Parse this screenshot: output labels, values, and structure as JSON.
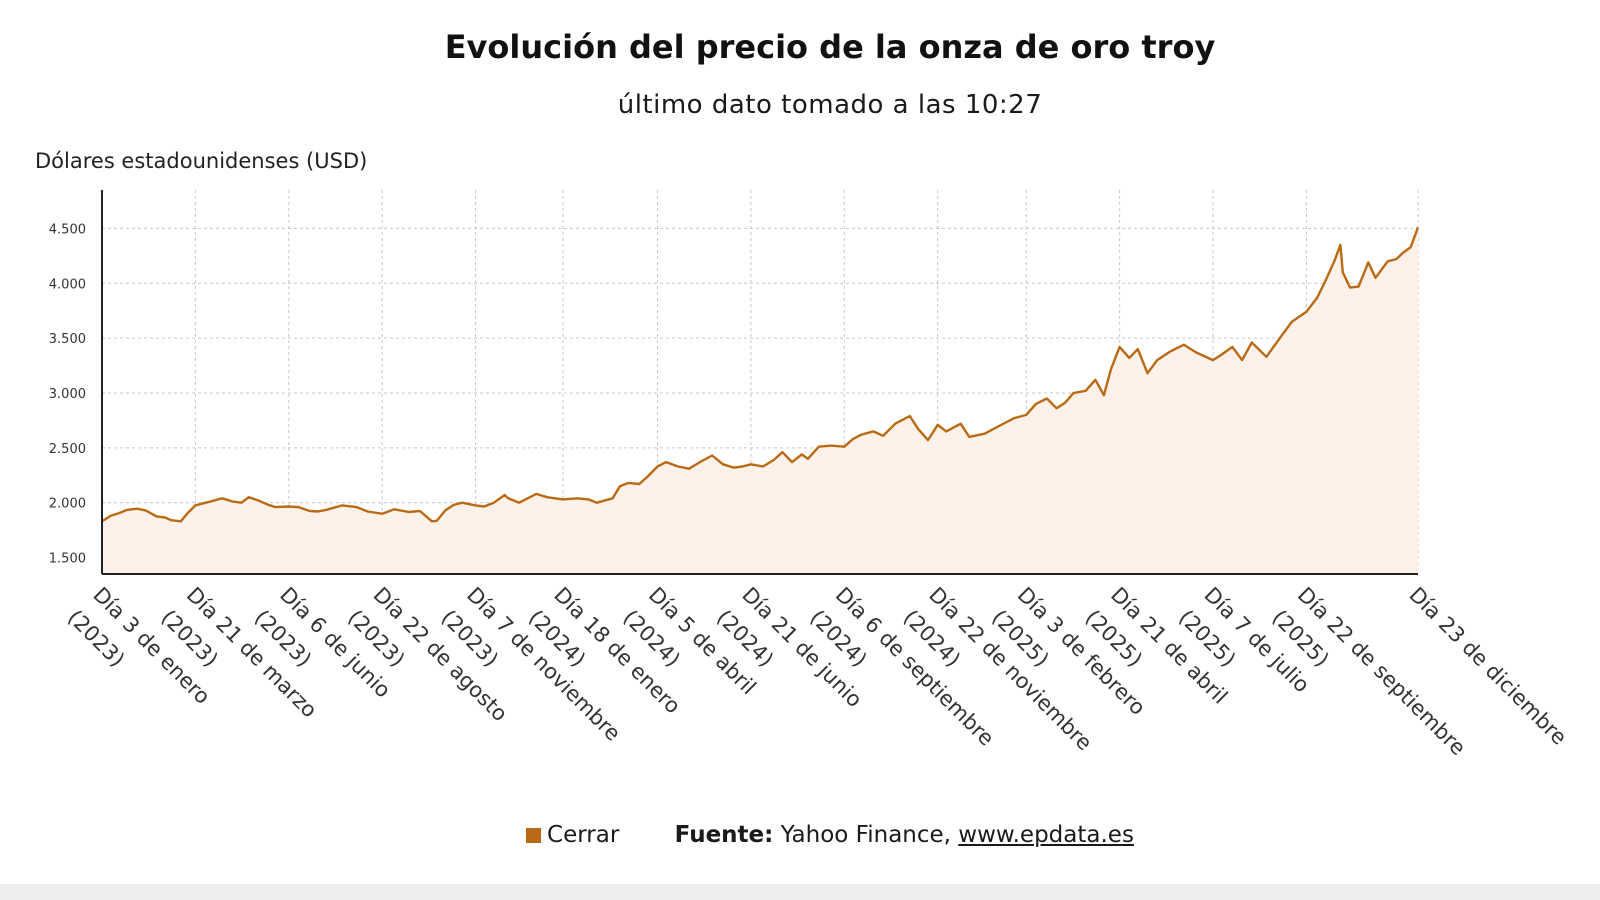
{
  "chart_data": {
    "type": "area",
    "title": "Evolución del precio de la onza de oro troy",
    "subtitle": "último dato tomado a las 10:27",
    "ylabel": "Dólares estadounidenses (USD)",
    "xlabel": "",
    "ylim": [
      1350,
      4850
    ],
    "yticks": [
      1500,
      2000,
      2500,
      3000,
      3500,
      4000,
      4500
    ],
    "ytick_labels": [
      "1.500",
      "2.000",
      "2.500",
      "3.000",
      "3.500",
      "4.000",
      "4.500"
    ],
    "xlim": [
      "2023-01-03",
      "2025-12-23"
    ],
    "xticks": [
      {
        "date": "2023-01-03",
        "line1": "Día 3 de enero",
        "line2": "(2023)"
      },
      {
        "date": "2023-03-21",
        "line1": "Día 21 de marzo",
        "line2": "(2023)"
      },
      {
        "date": "2023-06-06",
        "line1": "Día 6 de junio",
        "line2": "(2023)"
      },
      {
        "date": "2023-08-22",
        "line1": "Día 22 de agosto",
        "line2": "(2023)"
      },
      {
        "date": "2023-11-07",
        "line1": "Día 7 de noviembre",
        "line2": "(2023)"
      },
      {
        "date": "2024-01-18",
        "line1": "Día 18 de enero",
        "line2": "(2024)"
      },
      {
        "date": "2024-04-05",
        "line1": "Día 5 de abril",
        "line2": "(2024)"
      },
      {
        "date": "2024-06-21",
        "line1": "Día 21 de junio",
        "line2": "(2024)"
      },
      {
        "date": "2024-09-06",
        "line1": "Día 6 de septiembre",
        "line2": "(2024)"
      },
      {
        "date": "2024-11-22",
        "line1": "Día 22 de noviembre",
        "line2": "(2024)"
      },
      {
        "date": "2025-02-03",
        "line1": "Día 3 de febrero",
        "line2": "(2025)"
      },
      {
        "date": "2025-04-21",
        "line1": "Día 21 de abril",
        "line2": "(2025)"
      },
      {
        "date": "2025-07-07",
        "line1": "Día 7 de julio",
        "line2": "(2025)"
      },
      {
        "date": "2025-09-22",
        "line1": "Día 22 de septiembre",
        "line2": "(2025)"
      },
      {
        "date": "2025-12-23",
        "line1": "Día 23 de diciembre",
        "line2": ""
      }
    ],
    "grid": true,
    "legend_position": "bottom",
    "series": [
      {
        "name": "Cerrar",
        "color": "#b96a14",
        "fill": "#fdf1ea",
        "points": [
          [
            "2023-01-03",
            1830
          ],
          [
            "2023-01-10",
            1880
          ],
          [
            "2023-01-17",
            1905
          ],
          [
            "2023-01-24",
            1935
          ],
          [
            "2023-02-01",
            1945
          ],
          [
            "2023-02-08",
            1930
          ],
          [
            "2023-02-17",
            1875
          ],
          [
            "2023-02-24",
            1865
          ],
          [
            "2023-03-01",
            1840
          ],
          [
            "2023-03-09",
            1830
          ],
          [
            "2023-03-15",
            1910
          ],
          [
            "2023-03-21",
            1975
          ],
          [
            "2023-03-28",
            1995
          ],
          [
            "2023-04-04",
            2015
          ],
          [
            "2023-04-12",
            2040
          ],
          [
            "2023-04-21",
            2010
          ],
          [
            "2023-04-28",
            2000
          ],
          [
            "2023-05-04",
            2050
          ],
          [
            "2023-05-12",
            2020
          ],
          [
            "2023-05-19",
            1985
          ],
          [
            "2023-05-26",
            1960
          ],
          [
            "2023-06-06",
            1965
          ],
          [
            "2023-06-14",
            1960
          ],
          [
            "2023-06-23",
            1925
          ],
          [
            "2023-06-30",
            1920
          ],
          [
            "2023-07-07",
            1935
          ],
          [
            "2023-07-20",
            1975
          ],
          [
            "2023-08-01",
            1960
          ],
          [
            "2023-08-10",
            1920
          ],
          [
            "2023-08-22",
            1900
          ],
          [
            "2023-09-01",
            1940
          ],
          [
            "2023-09-13",
            1915
          ],
          [
            "2023-09-22",
            1925
          ],
          [
            "2023-10-02",
            1830
          ],
          [
            "2023-10-06",
            1835
          ],
          [
            "2023-10-13",
            1930
          ],
          [
            "2023-10-20",
            1980
          ],
          [
            "2023-10-27",
            2000
          ],
          [
            "2023-11-07",
            1975
          ],
          [
            "2023-11-14",
            1965
          ],
          [
            "2023-11-22",
            2000
          ],
          [
            "2023-12-01",
            2070
          ],
          [
            "2023-12-04",
            2040
          ],
          [
            "2023-12-13",
            2000
          ],
          [
            "2023-12-27",
            2080
          ],
          [
            "2024-01-05",
            2050
          ],
          [
            "2024-01-18",
            2030
          ],
          [
            "2024-01-30",
            2040
          ],
          [
            "2024-02-08",
            2030
          ],
          [
            "2024-02-15",
            2000
          ],
          [
            "2024-02-28",
            2040
          ],
          [
            "2024-03-05",
            2150
          ],
          [
            "2024-03-12",
            2180
          ],
          [
            "2024-03-21",
            2170
          ],
          [
            "2024-03-28",
            2240
          ],
          [
            "2024-04-05",
            2330
          ],
          [
            "2024-04-12",
            2370
          ],
          [
            "2024-04-22",
            2330
          ],
          [
            "2024-05-01",
            2310
          ],
          [
            "2024-05-10",
            2370
          ],
          [
            "2024-05-20",
            2430
          ],
          [
            "2024-05-29",
            2350
          ],
          [
            "2024-06-07",
            2320
          ],
          [
            "2024-06-14",
            2330
          ],
          [
            "2024-06-21",
            2350
          ],
          [
            "2024-07-01",
            2330
          ],
          [
            "2024-07-10",
            2390
          ],
          [
            "2024-07-17",
            2460
          ],
          [
            "2024-07-25",
            2370
          ],
          [
            "2024-08-02",
            2440
          ],
          [
            "2024-08-07",
            2400
          ],
          [
            "2024-08-16",
            2510
          ],
          [
            "2024-08-26",
            2520
          ],
          [
            "2024-09-06",
            2510
          ],
          [
            "2024-09-13",
            2580
          ],
          [
            "2024-09-20",
            2620
          ],
          [
            "2024-09-30",
            2650
          ],
          [
            "2024-10-08",
            2610
          ],
          [
            "2024-10-18",
            2720
          ],
          [
            "2024-10-30",
            2790
          ],
          [
            "2024-11-06",
            2670
          ],
          [
            "2024-11-14",
            2570
          ],
          [
            "2024-11-22",
            2710
          ],
          [
            "2024-11-29",
            2650
          ],
          [
            "2024-12-11",
            2720
          ],
          [
            "2024-12-18",
            2600
          ],
          [
            "2024-12-31",
            2630
          ],
          [
            "2025-01-10",
            2690
          ],
          [
            "2025-01-24",
            2770
          ],
          [
            "2025-02-03",
            2800
          ],
          [
            "2025-02-11",
            2900
          ],
          [
            "2025-02-20",
            2950
          ],
          [
            "2025-02-28",
            2860
          ],
          [
            "2025-03-07",
            2910
          ],
          [
            "2025-03-14",
            3000
          ],
          [
            "2025-03-24",
            3020
          ],
          [
            "2025-04-01",
            3120
          ],
          [
            "2025-04-08",
            2980
          ],
          [
            "2025-04-14",
            3220
          ],
          [
            "2025-04-21",
            3420
          ],
          [
            "2025-04-29",
            3320
          ],
          [
            "2025-05-06",
            3400
          ],
          [
            "2025-05-14",
            3180
          ],
          [
            "2025-05-22",
            3300
          ],
          [
            "2025-06-02",
            3380
          ],
          [
            "2025-06-13",
            3440
          ],
          [
            "2025-06-23",
            3370
          ],
          [
            "2025-07-07",
            3300
          ],
          [
            "2025-07-14",
            3350
          ],
          [
            "2025-07-23",
            3420
          ],
          [
            "2025-07-31",
            3300
          ],
          [
            "2025-08-08",
            3460
          ],
          [
            "2025-08-20",
            3330
          ],
          [
            "2025-09-02",
            3530
          ],
          [
            "2025-09-10",
            3650
          ],
          [
            "2025-09-22",
            3740
          ],
          [
            "2025-10-01",
            3870
          ],
          [
            "2025-10-08",
            4030
          ],
          [
            "2025-10-15",
            4200
          ],
          [
            "2025-10-20",
            4350
          ],
          [
            "2025-10-22",
            4100
          ],
          [
            "2025-10-28",
            3960
          ],
          [
            "2025-11-04",
            3970
          ],
          [
            "2025-11-12",
            4190
          ],
          [
            "2025-11-18",
            4050
          ],
          [
            "2025-11-28",
            4200
          ],
          [
            "2025-12-05",
            4220
          ],
          [
            "2025-12-11",
            4280
          ],
          [
            "2025-12-17",
            4330
          ],
          [
            "2025-12-23",
            4510
          ]
        ]
      }
    ]
  },
  "legend": [
    {
      "label": "Cerrar",
      "color": "#b96a14"
    }
  ],
  "footer": {
    "source_label": "Fuente:",
    "source_text": "Yahoo Finance,",
    "source_link": "www.epdata.es"
  }
}
